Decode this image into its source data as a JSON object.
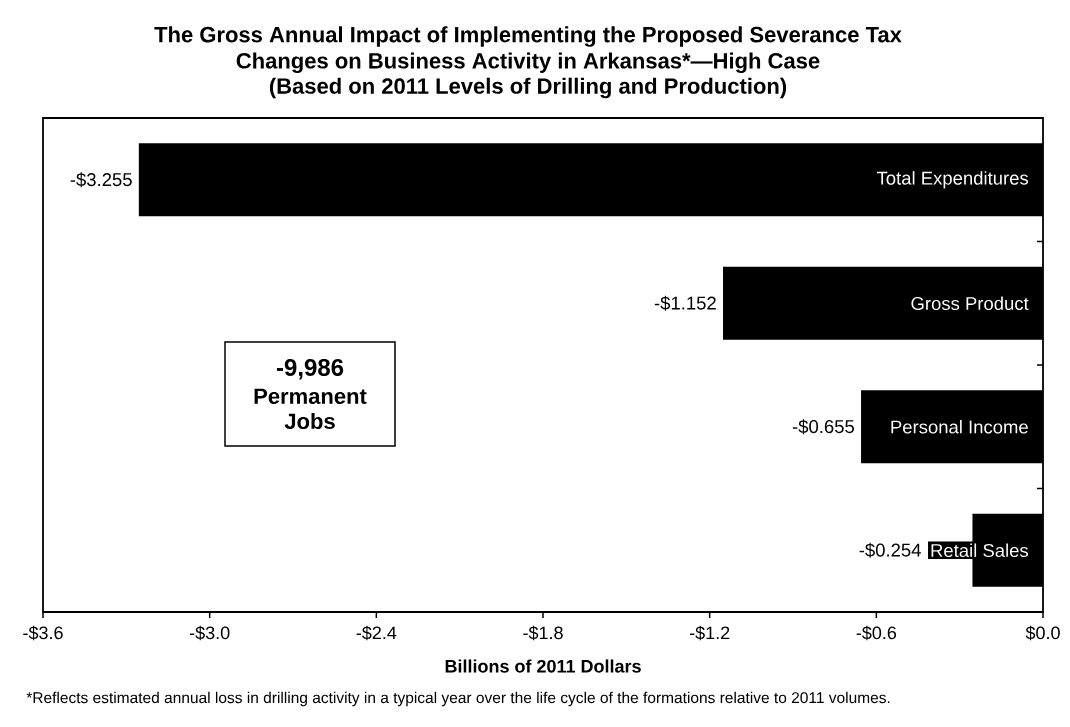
{
  "chart_data": {
    "type": "bar",
    "orientation": "horizontal",
    "title": "The Gross Annual Impact of Implementing the Proposed Severance Tax Changes on Business Activity in Arkansas*—High Case",
    "subtitle": "(Based on 2011 Levels of Drilling and Production)",
    "xlabel": "Billions of 2011 Dollars",
    "categories": [
      "Total Expenditures",
      "Gross Product",
      "Personal Income",
      "Retail Sales"
    ],
    "values": [
      -3.255,
      -1.152,
      -0.655,
      -0.254
    ],
    "value_labels": [
      "-$3.255",
      "-$1.152",
      "-$0.655",
      "-$0.254"
    ],
    "color": "#000000",
    "xlim": [
      -3.6,
      0.0
    ],
    "xticks": [
      {
        "value": -3.6,
        "label": "-$3.6"
      },
      {
        "value": -3.0,
        "label": "-$3.0"
      },
      {
        "value": -2.4,
        "label": "-$2.4"
      },
      {
        "value": -1.8,
        "label": "-$1.8"
      },
      {
        "value": -1.2,
        "label": "-$1.2"
      },
      {
        "value": -0.6,
        "label": "-$0.6"
      },
      {
        "value": 0.0,
        "label": "$0.0"
      }
    ],
    "annotations": [
      "-9,986",
      "Permanent Jobs",
      "*Reflects estimated annual loss in drilling activity in a typical year over the life cycle of the formations relative to 2011 volumes."
    ]
  }
}
